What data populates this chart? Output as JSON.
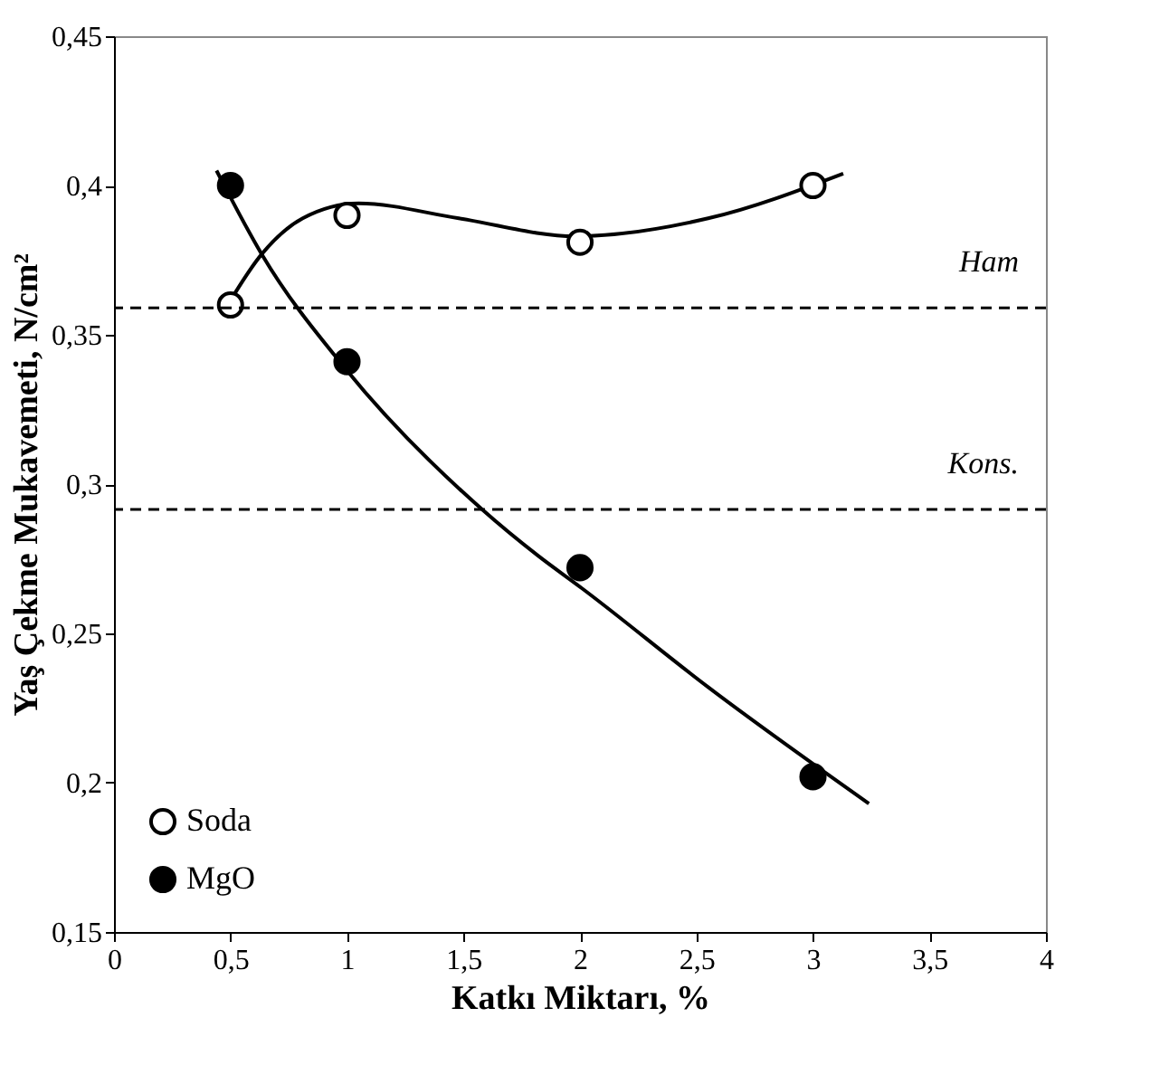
{
  "chart_data": {
    "type": "scatter",
    "xlabel": "Katkı Miktarı, %",
    "ylabel": "Yaş Çekme Mukavemeti, N/cm²",
    "series": [
      {
        "name": "Soda",
        "color": "#ffffff",
        "x": [
          0.5,
          1,
          2,
          3
        ],
        "values": [
          0.36,
          0.39,
          0.381,
          0.4
        ]
      },
      {
        "name": "MgO",
        "color": "#000000",
        "x": [
          0.5,
          1,
          2,
          3
        ],
        "values": [
          0.4,
          0.341,
          0.272,
          0.202
        ]
      },
      {
        "type": "line",
        "color": "#000000",
        "line_style": "solid",
        "marker": "none",
        "x": [
          0.465,
          0.634,
          0.81,
          1.05,
          1.48,
          1.98,
          2.55,
          3.13
        ],
        "values": [
          0.357,
          0.377,
          0.389,
          0.394,
          0.389,
          0.383,
          0.389,
          0.404
        ]
      },
      {
        "type": "line",
        "color": "#000000",
        "line_style": "solid",
        "marker": "none",
        "x": [
          0.44,
          0.634,
          0.995,
          1.58,
          1.82,
          2.01,
          2.55,
          3.24
        ],
        "values": [
          0.405,
          0.377,
          0.3385,
          0.2915,
          0.276,
          0.265,
          0.232,
          0.193
        ]
      }
    ],
    "xlim": [
      0,
      4
    ],
    "ylim": [
      0.15,
      0.45
    ],
    "xticks": [
      0,
      {
        "value": 0.5,
        "label": "0,5"
      },
      1,
      {
        "value": 1.5,
        "label": "1,5"
      },
      2,
      {
        "value": 2.5,
        "label": "2,5"
      },
      3,
      {
        "value": 3.5,
        "label": "3,5"
      },
      4
    ],
    "yticks": [
      {
        "value": 0.15,
        "label": "0,15"
      },
      {
        "value": 0.2,
        "label": "0,2"
      },
      {
        "value": 0.25,
        "label": "0,25"
      },
      {
        "value": 0.3,
        "label": "0,3"
      },
      {
        "value": 0.35,
        "label": "0,35"
      },
      {
        "value": 0.4,
        "label": "0,4"
      },
      {
        "value": 0.45,
        "label": "0,45"
      }
    ],
    "ref_lines": [
      {
        "axis": "y",
        "value": 0.359,
        "label": "Ham",
        "color": "#000000",
        "line_style": "dashed"
      },
      {
        "axis": "y",
        "value": 0.2915,
        "label": "Kons.",
        "color": "#000000",
        "line_style": "dashed"
      }
    ],
    "marker": "circle",
    "grid": false,
    "legend": "bottom left"
  }
}
